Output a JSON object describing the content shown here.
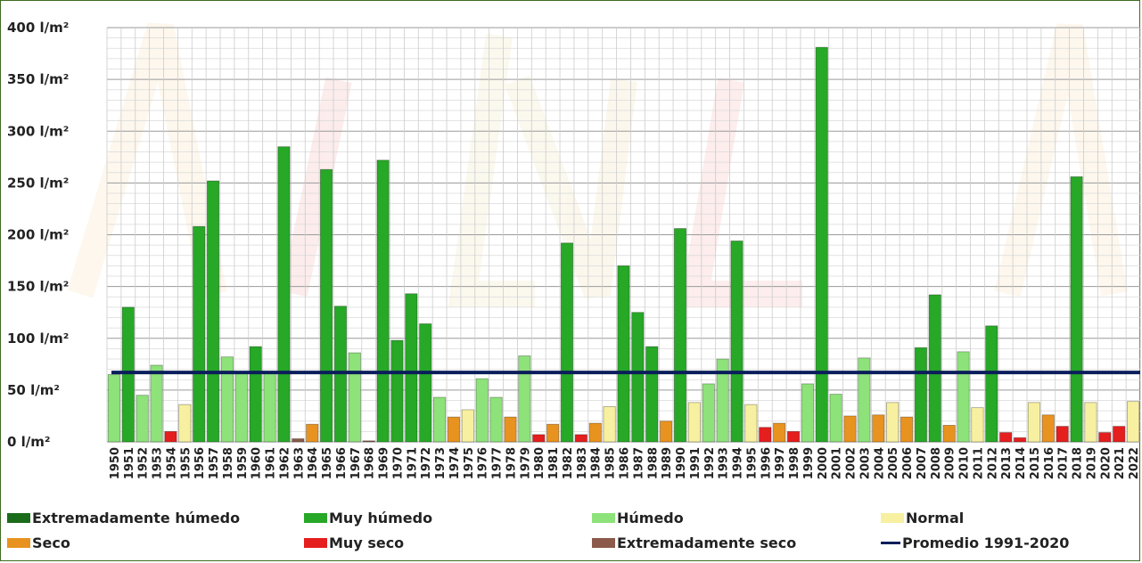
{
  "chart_data": {
    "type": "bar",
    "title": "",
    "xlabel": "",
    "ylabel": "",
    "ylim": [
      0,
      400
    ],
    "y_ticks": [
      "0 l/m²",
      "50 l/m²",
      "100 l/m²",
      "150 l/m²",
      "200 l/m²",
      "250 l/m²",
      "300 l/m²",
      "350 l/m²",
      "400 l/m²"
    ],
    "y_tick_values": [
      0,
      50,
      100,
      150,
      200,
      250,
      300,
      350,
      400
    ],
    "categories": [
      "1950",
      "1951",
      "1952",
      "1953",
      "1954",
      "1955",
      "1956",
      "1957",
      "1958",
      "1959",
      "1960",
      "1961",
      "1962",
      "1963",
      "1964",
      "1965",
      "1966",
      "1967",
      "1968",
      "1969",
      "1970",
      "1971",
      "1972",
      "1973",
      "1974",
      "1975",
      "1976",
      "1977",
      "1978",
      "1979",
      "1980",
      "1981",
      "1982",
      "1983",
      "1984",
      "1985",
      "1986",
      "1987",
      "1988",
      "1989",
      "1990",
      "1991",
      "1992",
      "1993",
      "1994",
      "1995",
      "1996",
      "1997",
      "1998",
      "1999",
      "2000",
      "2001",
      "2002",
      "2003",
      "2004",
      "2005",
      "2006",
      "2007",
      "2008",
      "2009",
      "2010",
      "2011",
      "2012",
      "2013",
      "2014",
      "2015",
      "2016",
      "2017",
      "2018",
      "2019",
      "2020",
      "2021",
      "2022"
    ],
    "values": [
      65,
      130,
      45,
      74,
      10,
      36,
      208,
      252,
      82,
      68,
      92,
      68,
      285,
      3,
      17,
      263,
      131,
      86,
      1,
      272,
      98,
      143,
      114,
      43,
      24,
      31,
      61,
      43,
      24,
      83,
      7,
      17,
      192,
      7,
      18,
      34,
      170,
      125,
      92,
      20,
      206,
      38,
      56,
      80,
      194,
      36,
      14,
      18,
      10,
      56,
      381,
      46,
      25,
      81,
      26,
      38,
      24,
      91,
      142,
      16,
      87,
      33,
      112,
      9,
      4,
      38,
      26,
      15,
      256,
      38,
      9,
      15,
      39
    ],
    "categories_class": [
      "humedo",
      "muy_humedo",
      "humedo",
      "humedo",
      "muy_seco",
      "normal",
      "muy_humedo",
      "muy_humedo",
      "humedo",
      "humedo",
      "muy_humedo",
      "humedo",
      "muy_humedo",
      "extremadamente_seco",
      "seco",
      "muy_humedo",
      "muy_humedo",
      "humedo",
      "extremadamente_seco",
      "muy_humedo",
      "muy_humedo",
      "muy_humedo",
      "muy_humedo",
      "humedo",
      "seco",
      "normal",
      "humedo",
      "humedo",
      "seco",
      "humedo",
      "muy_seco",
      "seco",
      "muy_humedo",
      "muy_seco",
      "seco",
      "normal",
      "muy_humedo",
      "muy_humedo",
      "muy_humedo",
      "seco",
      "muy_humedo",
      "normal",
      "humedo",
      "humedo",
      "muy_humedo",
      "normal",
      "muy_seco",
      "seco",
      "muy_seco",
      "humedo",
      "muy_humedo",
      "humedo",
      "seco",
      "humedo",
      "seco",
      "normal",
      "seco",
      "muy_humedo",
      "muy_humedo",
      "seco",
      "humedo",
      "normal",
      "muy_humedo",
      "muy_seco",
      "muy_seco",
      "normal",
      "seco",
      "muy_seco",
      "muy_humedo",
      "normal",
      "muy_seco",
      "muy_seco",
      "normal"
    ],
    "reference_line": {
      "value": 67,
      "color": "#0b1e5b"
    },
    "grid": true,
    "legend_position": "bottom",
    "classes": {
      "extremadamente_humedo": "#1a6b1a",
      "muy_humedo": "#27a827",
      "humedo": "#8de27a",
      "normal": "#f7f0a0",
      "seco": "#e8931f",
      "muy_seco": "#e51e1e",
      "extremadamente_seco": "#8b5a4a"
    }
  },
  "legend": {
    "items": [
      {
        "key": "extremadamente_humedo",
        "label": "Extremadamente húmedo",
        "color": "#1a6b1a"
      },
      {
        "key": "muy_humedo",
        "label": "Muy húmedo",
        "color": "#27a827"
      },
      {
        "key": "humedo",
        "label": "Húmedo",
        "color": "#8de27a"
      },
      {
        "key": "normal",
        "label": "Normal",
        "color": "#f7f0a0"
      },
      {
        "key": "seco",
        "label": "Seco",
        "color": "#e8931f"
      },
      {
        "key": "muy_seco",
        "label": "Muy seco",
        "color": "#e51e1e"
      },
      {
        "key": "extremadamente_seco",
        "label": "Extremadamente seco",
        "color": "#8b5a4a"
      },
      {
        "key": "promedio",
        "label": "Promedio 1991-2020",
        "color": "#0b1e5b"
      }
    ]
  }
}
